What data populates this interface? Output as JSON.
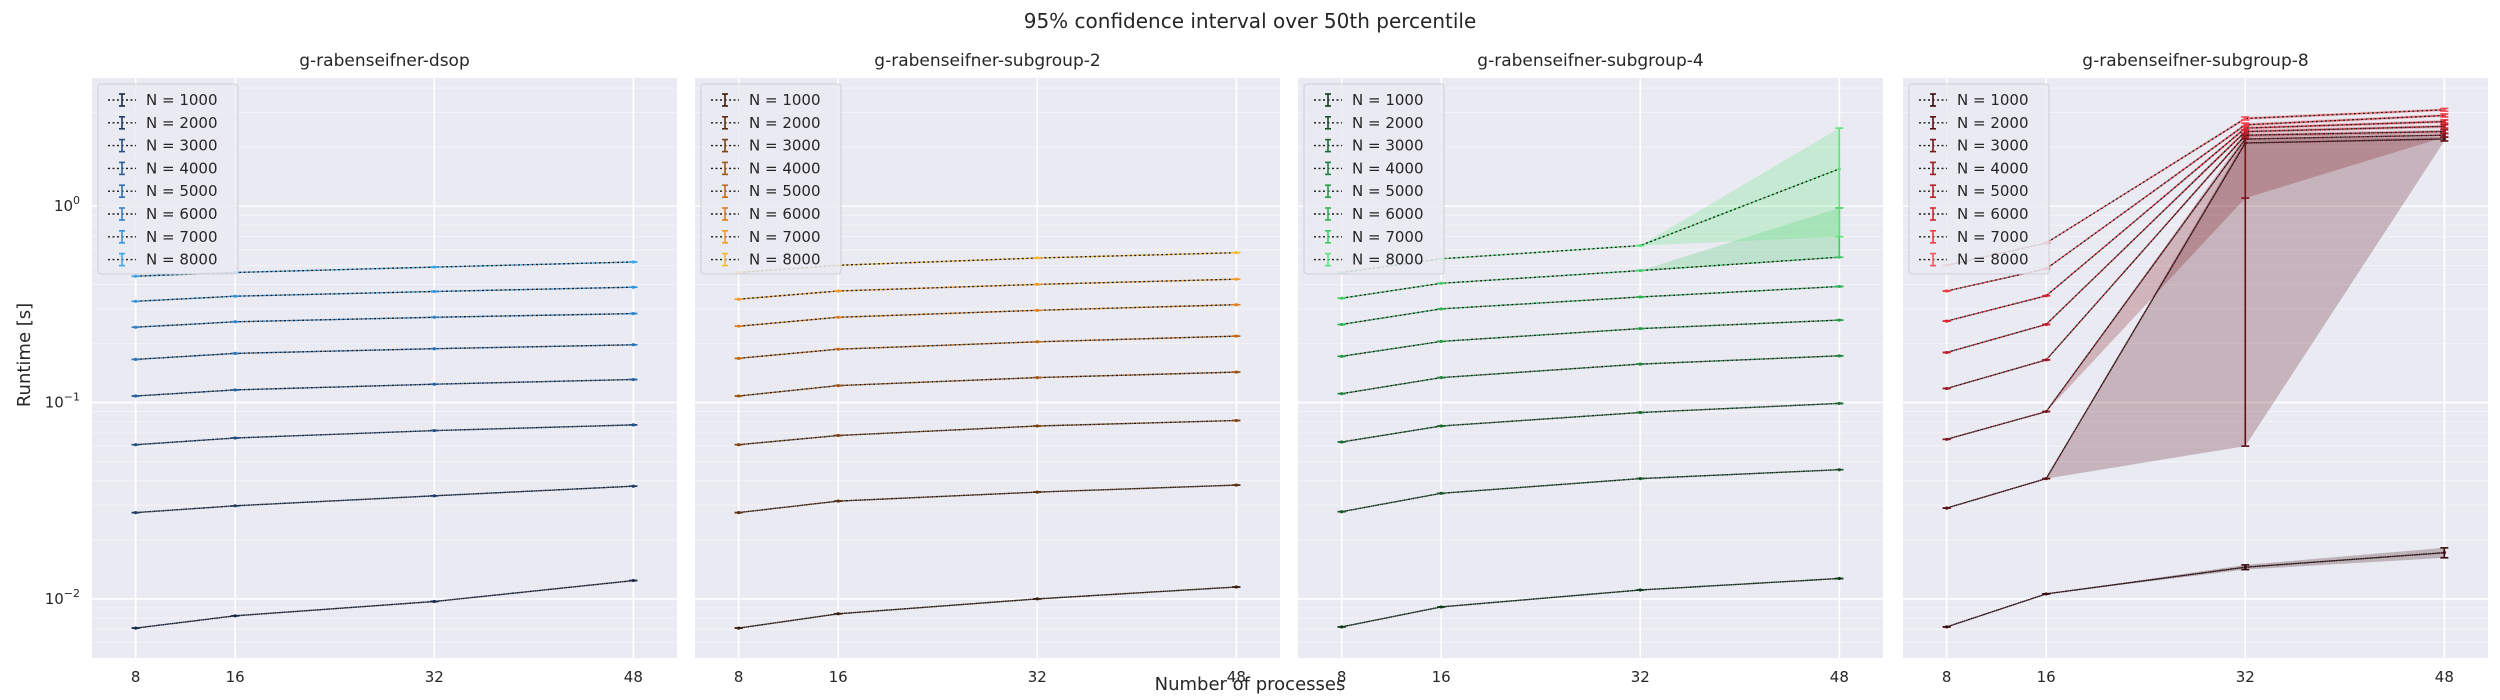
{
  "figure": {
    "title": "95% confidence interval over 50th percentile",
    "xlabel": "Number of processes",
    "ylabel": "Runtime [s]"
  },
  "chart_data": [
    {
      "type": "line",
      "title": "g-rabenseifner-dsop",
      "x": [
        8,
        16,
        32,
        48
      ],
      "xlabel": "Number of processes",
      "ylabel": "Runtime [s]",
      "yscale": "log",
      "ylim": [
        0.005,
        4.5
      ],
      "yticks": [
        "10^-2",
        "10^-1",
        "10^0"
      ],
      "grid": true,
      "legend": "top-left",
      "series": [
        {
          "name": "N = 1000",
          "color": "#1a2a47",
          "values": [
            0.0071,
            0.0082,
            0.0097,
            0.0124
          ],
          "lo": [
            0.0071,
            0.0082,
            0.0097,
            0.0124
          ],
          "hi": [
            0.0071,
            0.0082,
            0.0097,
            0.0124
          ]
        },
        {
          "name": "N = 2000",
          "color": "#1f3b63",
          "values": [
            0.0275,
            0.0298,
            0.0335,
            0.0375
          ],
          "lo": [
            0.0275,
            0.0298,
            0.0335,
            0.0375
          ],
          "hi": [
            0.0275,
            0.0298,
            0.0335,
            0.0375
          ]
        },
        {
          "name": "N = 3000",
          "color": "#244e82",
          "values": [
            0.061,
            0.066,
            0.072,
            0.077
          ],
          "lo": [
            0.061,
            0.066,
            0.072,
            0.077
          ],
          "hi": [
            0.061,
            0.066,
            0.072,
            0.077
          ]
        },
        {
          "name": "N = 4000",
          "color": "#285f9c",
          "values": [
            0.108,
            0.116,
            0.124,
            0.131
          ],
          "lo": [
            0.108,
            0.116,
            0.124,
            0.131
          ],
          "hi": [
            0.108,
            0.116,
            0.124,
            0.131
          ]
        },
        {
          "name": "N = 5000",
          "color": "#2c70b4",
          "values": [
            0.166,
            0.178,
            0.188,
            0.197
          ],
          "lo": [
            0.166,
            0.178,
            0.188,
            0.197
          ],
          "hi": [
            0.166,
            0.178,
            0.188,
            0.197
          ]
        },
        {
          "name": "N = 6000",
          "color": "#3083c8",
          "values": [
            0.242,
            0.258,
            0.272,
            0.284
          ],
          "lo": [
            0.242,
            0.258,
            0.272,
            0.284
          ],
          "hi": [
            0.242,
            0.258,
            0.272,
            0.284
          ]
        },
        {
          "name": "N = 7000",
          "color": "#3494d7",
          "values": [
            0.328,
            0.348,
            0.368,
            0.387
          ],
          "lo": [
            0.328,
            0.348,
            0.368,
            0.387
          ],
          "hi": [
            0.328,
            0.348,
            0.368,
            0.387
          ]
        },
        {
          "name": "N = 8000",
          "color": "#3aa6e6",
          "values": [
            0.44,
            0.46,
            0.49,
            0.52
          ],
          "lo": [
            0.44,
            0.46,
            0.49,
            0.52
          ],
          "hi": [
            0.44,
            0.46,
            0.49,
            0.52
          ]
        }
      ]
    },
    {
      "type": "line",
      "title": "g-rabenseifner-subgroup-2",
      "x": [
        8,
        16,
        32,
        48
      ],
      "xlabel": "Number of processes",
      "ylabel": "Runtime [s]",
      "yscale": "log",
      "ylim": [
        0.005,
        4.5
      ],
      "yticks": [
        "10^-2",
        "10^-1",
        "10^0"
      ],
      "grid": true,
      "legend": "top-left",
      "series": [
        {
          "name": "N = 1000",
          "color": "#3a1e0c",
          "values": [
            0.0071,
            0.0084,
            0.01,
            0.0115
          ],
          "lo": [
            0.0071,
            0.0084,
            0.01,
            0.0115
          ],
          "hi": [
            0.0071,
            0.0084,
            0.01,
            0.0115
          ]
        },
        {
          "name": "N = 2000",
          "color": "#5a300f",
          "values": [
            0.0275,
            0.0315,
            0.035,
            0.038
          ],
          "lo": [
            0.0275,
            0.0315,
            0.035,
            0.038
          ],
          "hi": [
            0.0275,
            0.0315,
            0.035,
            0.038
          ]
        },
        {
          "name": "N = 3000",
          "color": "#7c4212",
          "values": [
            0.061,
            0.068,
            0.076,
            0.081
          ],
          "lo": [
            0.061,
            0.068,
            0.076,
            0.081
          ],
          "hi": [
            0.061,
            0.068,
            0.076,
            0.081
          ]
        },
        {
          "name": "N = 4000",
          "color": "#a05614",
          "values": [
            0.108,
            0.122,
            0.134,
            0.143
          ],
          "lo": [
            0.108,
            0.122,
            0.134,
            0.143
          ],
          "hi": [
            0.108,
            0.122,
            0.134,
            0.143
          ]
        },
        {
          "name": "N = 5000",
          "color": "#c46a16",
          "values": [
            0.168,
            0.187,
            0.204,
            0.218
          ],
          "lo": [
            0.168,
            0.187,
            0.204,
            0.218
          ],
          "hi": [
            0.168,
            0.187,
            0.204,
            0.218
          ]
        },
        {
          "name": "N = 6000",
          "color": "#e07e1a",
          "values": [
            0.245,
            0.272,
            0.295,
            0.315
          ],
          "lo": [
            0.245,
            0.272,
            0.295,
            0.315
          ],
          "hi": [
            0.245,
            0.272,
            0.295,
            0.315
          ]
        },
        {
          "name": "N = 7000",
          "color": "#f29a26",
          "values": [
            0.336,
            0.37,
            0.4,
            0.425
          ],
          "lo": [
            0.336,
            0.37,
            0.4,
            0.425
          ],
          "hi": [
            0.336,
            0.37,
            0.4,
            0.425
          ]
        },
        {
          "name": "N = 8000",
          "color": "#f8b830",
          "values": [
            0.46,
            0.5,
            0.545,
            0.58
          ],
          "lo": [
            0.46,
            0.5,
            0.545,
            0.58
          ],
          "hi": [
            0.46,
            0.5,
            0.545,
            0.58
          ]
        }
      ]
    },
    {
      "type": "line",
      "title": "g-rabenseifner-subgroup-4",
      "x": [
        8,
        16,
        32,
        48
      ],
      "xlabel": "Number of processes",
      "ylabel": "Runtime [s]",
      "yscale": "log",
      "ylim": [
        0.005,
        4.5
      ],
      "yticks": [
        "10^-2",
        "10^-1",
        "10^0"
      ],
      "grid": true,
      "legend": "top-left",
      "series": [
        {
          "name": "N = 1000",
          "color": "#123a1c",
          "values": [
            0.0072,
            0.0091,
            0.0111,
            0.0127
          ],
          "lo": [
            0.0072,
            0.0091,
            0.0111,
            0.0127
          ],
          "hi": [
            0.0072,
            0.0091,
            0.0111,
            0.0127
          ]
        },
        {
          "name": "N = 2000",
          "color": "#175227",
          "values": [
            0.0278,
            0.0345,
            0.041,
            0.0455
          ],
          "lo": [
            0.0278,
            0.0345,
            0.041,
            0.0455
          ],
          "hi": [
            0.0278,
            0.0345,
            0.041,
            0.0455
          ]
        },
        {
          "name": "N = 3000",
          "color": "#1c6a32",
          "values": [
            0.063,
            0.076,
            0.089,
            0.099
          ],
          "lo": [
            0.063,
            0.076,
            0.089,
            0.099
          ],
          "hi": [
            0.063,
            0.076,
            0.089,
            0.099
          ]
        },
        {
          "name": "N = 4000",
          "color": "#21823d",
          "values": [
            0.111,
            0.134,
            0.157,
            0.173
          ],
          "lo": [
            0.111,
            0.134,
            0.157,
            0.173
          ],
          "hi": [
            0.111,
            0.134,
            0.157,
            0.173
          ]
        },
        {
          "name": "N = 5000",
          "color": "#279a48",
          "values": [
            0.172,
            0.205,
            0.238,
            0.263
          ],
          "lo": [
            0.172,
            0.205,
            0.238,
            0.263
          ],
          "hi": [
            0.172,
            0.205,
            0.238,
            0.263
          ]
        },
        {
          "name": "N = 6000",
          "color": "#30b455",
          "values": [
            0.25,
            0.3,
            0.345,
            0.39
          ],
          "lo": [
            0.25,
            0.3,
            0.345,
            0.39
          ],
          "hi": [
            0.25,
            0.3,
            0.345,
            0.39
          ]
        },
        {
          "name": "N = 7000",
          "color": "#40cc63",
          "values": [
            0.34,
            0.405,
            0.47,
            0.55
          ],
          "lo": [
            0.34,
            0.405,
            0.47,
            0.55
          ],
          "hi": [
            0.34,
            0.405,
            0.47,
            0.98
          ]
        },
        {
          "name": "N = 8000",
          "color": "#5ae678",
          "values": [
            0.46,
            0.54,
            0.63,
            1.55
          ],
          "lo": [
            0.46,
            0.54,
            0.63,
            0.7
          ],
          "hi": [
            0.46,
            0.54,
            0.63,
            2.5
          ]
        }
      ]
    },
    {
      "type": "line",
      "title": "g-rabenseifner-subgroup-8",
      "x": [
        8,
        16,
        32,
        48
      ],
      "xlabel": "Number of processes",
      "ylabel": "Runtime [s]",
      "yscale": "log",
      "ylim": [
        0.005,
        4.5
      ],
      "yticks": [
        "10^-2",
        "10^-1",
        "10^0"
      ],
      "grid": true,
      "legend": "top-left",
      "series": [
        {
          "name": "N = 1000",
          "color": "#3a0c10",
          "values": [
            0.0072,
            0.0106,
            0.0145,
            0.0172
          ],
          "lo": [
            0.0072,
            0.0106,
            0.0141,
            0.0162
          ],
          "hi": [
            0.0072,
            0.0106,
            0.0149,
            0.0182
          ]
        },
        {
          "name": "N = 2000",
          "color": "#5c1016",
          "values": [
            0.029,
            0.041,
            2.1,
            2.2
          ],
          "lo": [
            0.029,
            0.041,
            0.06,
            2.15
          ],
          "hi": [
            0.029,
            0.041,
            2.2,
            2.25
          ]
        },
        {
          "name": "N = 3000",
          "color": "#7e141c",
          "values": [
            0.065,
            0.09,
            2.2,
            2.3
          ],
          "lo": [
            0.065,
            0.09,
            1.1,
            2.25
          ],
          "hi": [
            0.065,
            0.09,
            2.3,
            2.35
          ]
        },
        {
          "name": "N = 4000",
          "color": "#a01822",
          "values": [
            0.118,
            0.165,
            2.3,
            2.4
          ],
          "lo": [
            0.118,
            0.165,
            2.25,
            2.35
          ],
          "hi": [
            0.118,
            0.165,
            2.35,
            2.45
          ]
        },
        {
          "name": "N = 5000",
          "color": "#c01c28",
          "values": [
            0.18,
            0.25,
            2.4,
            2.55
          ],
          "lo": [
            0.18,
            0.25,
            2.35,
            2.5
          ],
          "hi": [
            0.18,
            0.25,
            2.45,
            2.6
          ]
        },
        {
          "name": "N = 6000",
          "color": "#de222f",
          "values": [
            0.26,
            0.35,
            2.5,
            2.7
          ],
          "lo": [
            0.26,
            0.35,
            2.45,
            2.65
          ],
          "hi": [
            0.26,
            0.35,
            2.55,
            2.75
          ]
        },
        {
          "name": "N = 7000",
          "color": "#ee3a44",
          "values": [
            0.37,
            0.48,
            2.6,
            2.9
          ],
          "lo": [
            0.37,
            0.48,
            2.55,
            2.85
          ],
          "hi": [
            0.37,
            0.48,
            2.65,
            2.95
          ]
        },
        {
          "name": "N = 8000",
          "color": "#f8525a",
          "values": [
            0.5,
            0.65,
            2.8,
            3.1
          ],
          "lo": [
            0.5,
            0.65,
            2.75,
            3.05
          ],
          "hi": [
            0.5,
            0.65,
            2.85,
            3.15
          ]
        }
      ]
    }
  ]
}
